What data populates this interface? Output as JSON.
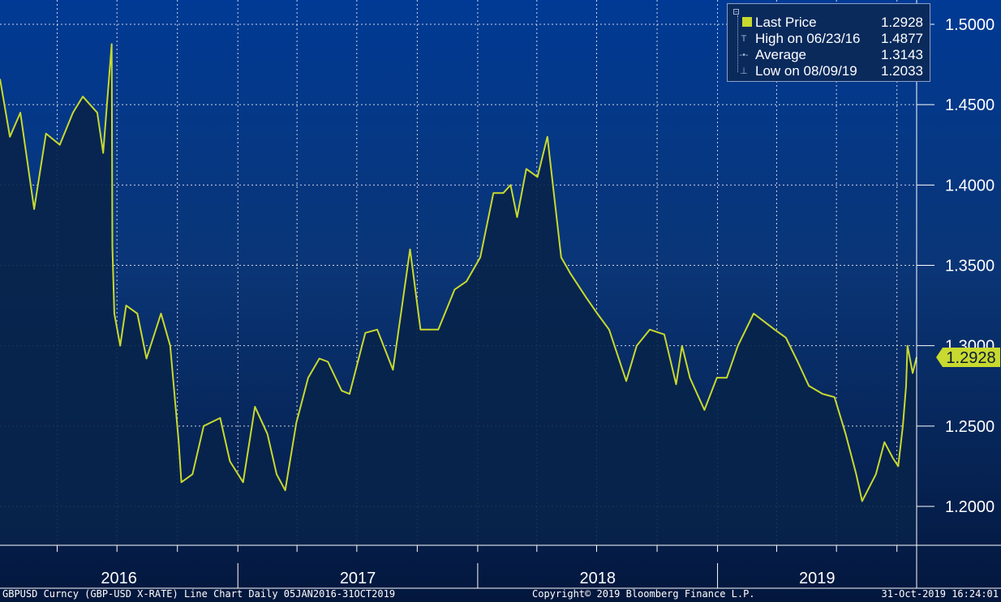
{
  "legend": {
    "rows": [
      {
        "label": "Last Price",
        "value": "1.2928"
      },
      {
        "label": "High on 06/23/16",
        "value": "1.4877"
      },
      {
        "label": "Average",
        "value": "1.3143"
      },
      {
        "label": "Low on 08/09/19",
        "value": "1.2033"
      }
    ]
  },
  "last_price_tag": "1.2928",
  "footer": {
    "left": "GBPUSD Curncy (GBP-USD X-RATE) Line Chart  Daily 05JAN2016-31OCT2019",
    "center": "Copyright© 2019 Bloomberg Finance L.P.",
    "right": "31-Oct-2019 16:24:01"
  },
  "colors": {
    "line": "#c8d92f",
    "background_top": "#003a94",
    "background_bottom": "#03173d",
    "area_fill": "#08234a",
    "tag_background": "#c8d92f"
  },
  "chart_data": {
    "type": "area",
    "title": "",
    "xlabel": "",
    "ylabel": "",
    "x_range": [
      "2016-01-05",
      "2019-10-31"
    ],
    "ylim": [
      1.17,
      1.515
    ],
    "y_ticks": [
      "1.5000",
      "1.4500",
      "1.4000",
      "1.3500",
      "1.3000",
      "1.2500",
      "1.2000"
    ],
    "x_ticks": [
      "2016",
      "2017",
      "2018",
      "2019"
    ],
    "grid": true,
    "legend_position": "top-right",
    "series": [
      {
        "name": "Last Price",
        "x": [
          "2016-01-05",
          "2016-01-20",
          "2016-02-05",
          "2016-02-26",
          "2016-03-15",
          "2016-04-05",
          "2016-04-25",
          "2016-05-10",
          "2016-06-01",
          "2016-06-10",
          "2016-06-23",
          "2016-06-24",
          "2016-06-27",
          "2016-07-06",
          "2016-07-15",
          "2016-08-01",
          "2016-08-15",
          "2016-09-06",
          "2016-09-20",
          "2016-10-03",
          "2016-10-07",
          "2016-10-24",
          "2016-11-10",
          "2016-12-05",
          "2016-12-20",
          "2017-01-09",
          "2017-01-27",
          "2017-02-15",
          "2017-03-01",
          "2017-03-14",
          "2017-03-31",
          "2017-04-18",
          "2017-05-05",
          "2017-05-18",
          "2017-06-08",
          "2017-06-20",
          "2017-07-14",
          "2017-08-01",
          "2017-08-25",
          "2017-09-08",
          "2017-09-20",
          "2017-10-06",
          "2017-10-20",
          "2017-11-02",
          "2017-11-27",
          "2017-12-15",
          "2018-01-05",
          "2018-01-25",
          "2018-02-09",
          "2018-02-20",
          "2018-03-02",
          "2018-03-16",
          "2018-04-02",
          "2018-04-17",
          "2018-05-08",
          "2018-05-22",
          "2018-06-15",
          "2018-07-02",
          "2018-07-20",
          "2018-08-15",
          "2018-08-31",
          "2018-09-20",
          "2018-10-12",
          "2018-10-30",
          "2018-11-08",
          "2018-11-20",
          "2018-12-12",
          "2018-12-31",
          "2019-01-15",
          "2019-02-01",
          "2019-02-25",
          "2019-03-13",
          "2019-03-29",
          "2019-04-15",
          "2019-05-03",
          "2019-05-20",
          "2019-06-10",
          "2019-06-28",
          "2019-07-15",
          "2019-07-31",
          "2019-08-09",
          "2019-08-30",
          "2019-09-12",
          "2019-09-25",
          "2019-10-03",
          "2019-10-10",
          "2019-10-15",
          "2019-10-17",
          "2019-10-25",
          "2019-10-31"
        ],
        "values": [
          1.466,
          1.43,
          1.445,
          1.385,
          1.432,
          1.425,
          1.445,
          1.455,
          1.445,
          1.42,
          1.4877,
          1.362,
          1.32,
          1.3,
          1.325,
          1.32,
          1.292,
          1.32,
          1.3,
          1.24,
          1.215,
          1.22,
          1.25,
          1.255,
          1.228,
          1.215,
          1.262,
          1.245,
          1.22,
          1.21,
          1.252,
          1.28,
          1.292,
          1.29,
          1.272,
          1.27,
          1.308,
          1.31,
          1.285,
          1.325,
          1.36,
          1.31,
          1.31,
          1.31,
          1.335,
          1.34,
          1.355,
          1.395,
          1.395,
          1.4,
          1.38,
          1.41,
          1.405,
          1.43,
          1.355,
          1.345,
          1.33,
          1.32,
          1.31,
          1.278,
          1.3,
          1.31,
          1.307,
          1.276,
          1.3,
          1.28,
          1.26,
          1.28,
          1.28,
          1.3,
          1.32,
          1.315,
          1.31,
          1.305,
          1.29,
          1.275,
          1.27,
          1.268,
          1.245,
          1.22,
          1.2033,
          1.22,
          1.24,
          1.23,
          1.225,
          1.25,
          1.275,
          1.3,
          1.283,
          1.2928
        ]
      }
    ]
  }
}
